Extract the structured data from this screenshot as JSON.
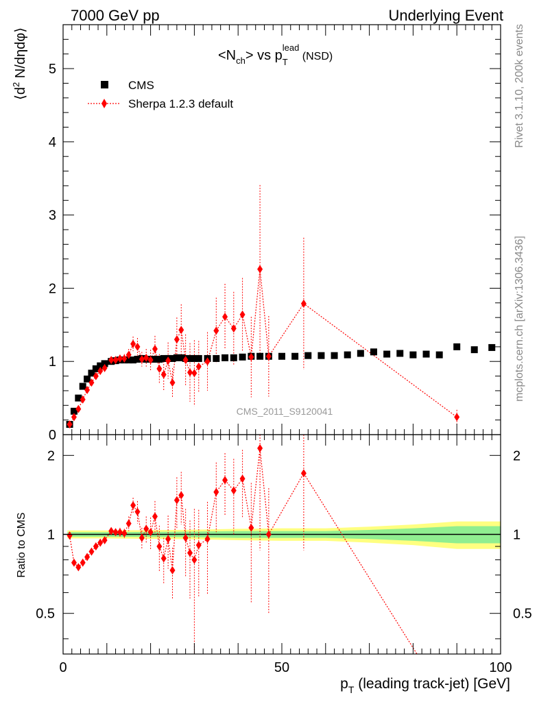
{
  "header": {
    "left": "7000 GeV pp",
    "right": "Underlying Event"
  },
  "side_text": {
    "rivet": "Rivet 3.1.10,  200k events",
    "source": "mcplots.cern.ch [arXiv:1306.3436]"
  },
  "watermark": "CMS_2011_S9120041",
  "colors": {
    "data": "#000000",
    "mc": "#ff0000",
    "band_inner": "#90ee90",
    "band_outer": "#ffff80",
    "ratio_line": "#000000",
    "watermark": "#999999",
    "side_text": "#888888"
  },
  "chart_data": [
    {
      "type": "scatter",
      "panel": "main",
      "title": "<Nch> vs pT^lead (NSD)",
      "title_parts": {
        "base1": "<N",
        "sub1": "ch",
        "mid": "> vs p",
        "sup2": "lead",
        "sub2": "T",
        "tail": " (NSD)"
      },
      "ylabel": "⟨d² N/dηdφ⟩",
      "ylabel_parts": {
        "a": "⟨d",
        "sup": "2",
        "b": " N/dηdφ⟩"
      },
      "xlim": [
        0,
        100
      ],
      "ylim": [
        0,
        5.6
      ],
      "yticks": [
        0,
        1,
        2,
        3,
        4,
        5
      ],
      "legend_position": "top-left",
      "series": [
        {
          "name": "CMS",
          "marker": "square",
          "x": [
            1.5,
            2.5,
            3.5,
            4.5,
            5.5,
            6.5,
            7.5,
            8.5,
            9.5,
            11,
            12,
            13,
            14,
            15,
            16,
            17,
            18,
            19,
            20,
            21,
            22,
            23,
            24,
            25,
            26,
            27,
            28,
            29,
            30,
            31,
            33,
            35,
            37,
            39,
            41,
            43,
            45,
            47,
            50,
            53,
            56,
            59,
            62,
            65,
            68,
            71,
            74,
            77,
            80,
            83,
            86,
            90,
            94,
            98
          ],
          "y": [
            0.14,
            0.32,
            0.5,
            0.66,
            0.76,
            0.84,
            0.9,
            0.94,
            0.97,
            1.0,
            1.01,
            1.02,
            1.02,
            1.02,
            1.02,
            1.03,
            1.04,
            1.03,
            1.03,
            1.03,
            1.03,
            1.04,
            1.04,
            1.04,
            1.05,
            1.05,
            1.04,
            1.04,
            1.04,
            1.04,
            1.04,
            1.04,
            1.05,
            1.05,
            1.06,
            1.07,
            1.07,
            1.07,
            1.07,
            1.07,
            1.08,
            1.08,
            1.08,
            1.09,
            1.11,
            1.13,
            1.1,
            1.11,
            1.09,
            1.1,
            1.09,
            1.2,
            1.16,
            1.19
          ]
        },
        {
          "name": "Sherpa 1.2.3 default",
          "marker": "diamond",
          "linestyle": "dotted",
          "x": [
            1.5,
            2.5,
            3.5,
            4.5,
            5.5,
            6.5,
            7.5,
            8.5,
            9.5,
            11,
            12,
            13,
            14,
            15,
            16,
            17,
            18,
            19,
            20,
            21,
            22,
            23,
            24,
            25,
            26,
            27,
            28,
            29,
            30,
            31,
            33,
            35,
            37,
            39,
            41,
            43,
            45,
            47,
            55,
            90
          ],
          "y": [
            0.14,
            0.24,
            0.35,
            0.48,
            0.61,
            0.71,
            0.8,
            0.87,
            0.91,
            1.02,
            1.02,
            1.04,
            1.04,
            1.09,
            1.24,
            1.2,
            1.03,
            1.05,
            1.02,
            1.17,
            0.9,
            0.82,
            1.01,
            0.71,
            1.3,
            1.43,
            1.02,
            0.85,
            0.84,
            0.93,
            1.0,
            1.42,
            1.61,
            1.45,
            1.64,
            1.06,
            2.26,
            1.07,
            1.79,
            0.24
          ],
          "err": [
            0.02,
            0.02,
            0.02,
            0.02,
            0.02,
            0.02,
            0.02,
            0.02,
            0.03,
            0.03,
            0.04,
            0.05,
            0.06,
            0.08,
            0.1,
            0.12,
            0.1,
            0.12,
            0.14,
            0.18,
            0.2,
            0.22,
            0.25,
            0.2,
            0.3,
            0.35,
            0.35,
            0.4,
            0.45,
            0.35,
            0.4,
            0.45,
            0.45,
            0.5,
            0.5,
            0.55,
            1.15,
            0.55,
            0.9,
            0.1
          ]
        }
      ]
    },
    {
      "type": "scatter",
      "panel": "ratio",
      "xlabel": "p_T (leading track-jet) [GeV]",
      "xlabel_parts": {
        "p": "p",
        "sub": "T",
        "rest": " (leading track-jet) [GeV]"
      },
      "ylabel": "Ratio to CMS",
      "scale": "log",
      "xlim": [
        0,
        100
      ],
      "ylim": [
        0.35,
        2.4
      ],
      "xticks": [
        0,
        50,
        100
      ],
      "yticks": [
        0.5,
        1,
        2
      ],
      "band": {
        "x": [
          1,
          10,
          20,
          30,
          40,
          50,
          60,
          70,
          80,
          90,
          100
        ],
        "inner_half_width": [
          0.02,
          0.02,
          0.022,
          0.025,
          0.03,
          0.03,
          0.03,
          0.04,
          0.055,
          0.075,
          0.075
        ],
        "outer_half_width": [
          0.035,
          0.035,
          0.038,
          0.042,
          0.05,
          0.055,
          0.055,
          0.07,
          0.09,
          0.12,
          0.12
        ]
      },
      "series": [
        {
          "name": "Sherpa 1.2.3 default",
          "marker": "diamond",
          "linestyle": "dotted",
          "x": [
            1.5,
            2.5,
            3.5,
            4.5,
            5.5,
            6.5,
            7.5,
            8.5,
            9.5,
            11,
            12,
            13,
            14,
            15,
            16,
            17,
            18,
            19,
            20,
            21,
            22,
            23,
            24,
            25,
            26,
            27,
            28,
            29,
            30,
            31,
            33,
            35,
            37,
            39,
            41,
            43,
            45,
            47,
            55
          ],
          "y": [
            0.99,
            0.78,
            0.75,
            0.78,
            0.82,
            0.86,
            0.9,
            0.93,
            0.95,
            1.03,
            1.02,
            1.02,
            1.01,
            1.1,
            1.29,
            1.22,
            0.97,
            1.05,
            1.02,
            1.17,
            0.9,
            0.81,
            0.96,
            0.73,
            1.35,
            1.41,
            0.97,
            0.85,
            0.8,
            0.91,
            0.96,
            1.45,
            1.61,
            1.47,
            1.63,
            1.06,
            2.13,
            1.0,
            1.71
          ],
          "lo": [
            0.97,
            0.76,
            0.73,
            0.76,
            0.8,
            0.84,
            0.88,
            0.91,
            0.93,
            1.0,
            0.99,
            0.98,
            0.97,
            1.03,
            1.2,
            1.1,
            0.88,
            0.93,
            0.88,
            1.0,
            0.72,
            0.65,
            0.74,
            0.57,
            1.05,
            1.09,
            0.69,
            0.57,
            0.35,
            0.58,
            0.59,
            1.02,
            1.18,
            1.0,
            1.16,
            0.55,
            0.87,
            0.5,
            0.87
          ],
          "hi": [
            1.01,
            0.8,
            0.77,
            0.8,
            0.84,
            0.88,
            0.92,
            0.95,
            0.97,
            1.06,
            1.05,
            1.06,
            1.05,
            1.17,
            1.38,
            1.34,
            1.06,
            1.17,
            1.16,
            1.34,
            1.08,
            0.97,
            1.18,
            0.89,
            1.65,
            1.73,
            1.25,
            1.13,
            1.25,
            1.24,
            1.33,
            1.88,
            2.04,
            1.94,
            2.1,
            1.57,
            2.4,
            1.5,
            2.4
          ],
          "continues_to": {
            "x": 90,
            "y": 0.2
          }
        }
      ]
    }
  ]
}
